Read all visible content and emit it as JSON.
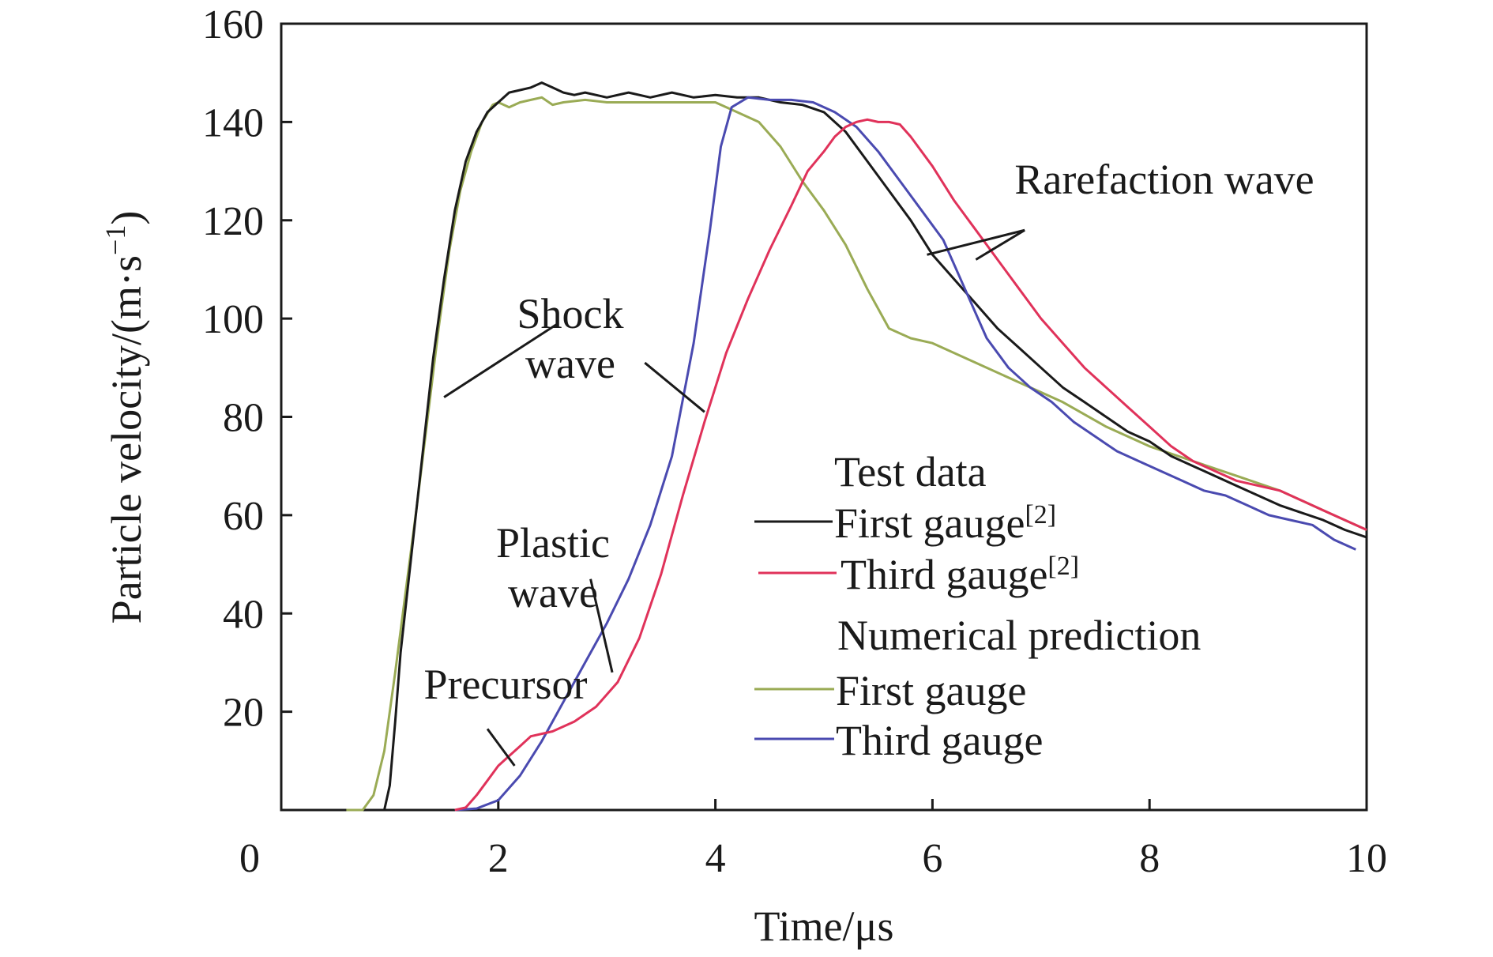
{
  "chart_data": {
    "type": "line",
    "title": "",
    "xlabel": "Time/μs",
    "ylabel": "Particle velocity/(m·s",
    "ylabel_sup": "−1",
    "ylabel_close": ")",
    "xlim": [
      0,
      10
    ],
    "ylim": [
      0,
      160
    ],
    "x_ticks": [
      0,
      2,
      4,
      6,
      8,
      10
    ],
    "y_ticks": [
      20,
      40,
      60,
      80,
      100,
      120,
      140,
      160
    ],
    "grid": false,
    "legend": {
      "placement": "lower-right",
      "groups": [
        {
          "title": "Test data",
          "entries": [
            {
              "label": "First gauge",
              "sup": "[2]",
              "series": "test_first"
            },
            {
              "label": "Third gauge",
              "sup": "[2]",
              "series": "test_third"
            }
          ]
        },
        {
          "title": "Numerical prediction",
          "entries": [
            {
              "label": "First gauge",
              "sup": "",
              "series": "num_first"
            },
            {
              "label": "Third gauge",
              "sup": "",
              "series": "num_third"
            }
          ]
        }
      ]
    },
    "annotations": {
      "shock": [
        "Shock",
        "wave"
      ],
      "rarefaction": "Rarefaction wave",
      "plastic": [
        "Plastic",
        "wave"
      ],
      "precursor": "Precursor"
    },
    "series": [
      {
        "id": "test_first",
        "color": "#1a1a1a",
        "points": [
          [
            0.85,
            0
          ],
          [
            0.95,
            0
          ],
          [
            1.0,
            5
          ],
          [
            1.05,
            18
          ],
          [
            1.1,
            32
          ],
          [
            1.2,
            52
          ],
          [
            1.3,
            72
          ],
          [
            1.4,
            92
          ],
          [
            1.5,
            108
          ],
          [
            1.6,
            122
          ],
          [
            1.7,
            132
          ],
          [
            1.8,
            138
          ],
          [
            1.9,
            142
          ],
          [
            2.0,
            144
          ],
          [
            2.1,
            146
          ],
          [
            2.2,
            146.5
          ],
          [
            2.3,
            147
          ],
          [
            2.4,
            148
          ],
          [
            2.5,
            147
          ],
          [
            2.6,
            146
          ],
          [
            2.7,
            145.5
          ],
          [
            2.8,
            146
          ],
          [
            3.0,
            145
          ],
          [
            3.2,
            146
          ],
          [
            3.4,
            145
          ],
          [
            3.6,
            146
          ],
          [
            3.8,
            145
          ],
          [
            4.0,
            145.5
          ],
          [
            4.2,
            145
          ],
          [
            4.4,
            145
          ],
          [
            4.6,
            144
          ],
          [
            4.8,
            143.5
          ],
          [
            5.0,
            142
          ],
          [
            5.2,
            138
          ],
          [
            5.4,
            132
          ],
          [
            5.6,
            126
          ],
          [
            5.8,
            120
          ],
          [
            6.0,
            113
          ],
          [
            6.2,
            108
          ],
          [
            6.4,
            103
          ],
          [
            6.6,
            98
          ],
          [
            6.8,
            94
          ],
          [
            7.0,
            90
          ],
          [
            7.2,
            86
          ],
          [
            7.4,
            83
          ],
          [
            7.6,
            80
          ],
          [
            7.8,
            77
          ],
          [
            8.0,
            75
          ],
          [
            8.2,
            72
          ],
          [
            8.4,
            70
          ],
          [
            8.6,
            68
          ],
          [
            8.8,
            66
          ],
          [
            9.0,
            64
          ],
          [
            9.2,
            62
          ],
          [
            9.4,
            60.5
          ],
          [
            9.6,
            59
          ],
          [
            9.8,
            57
          ],
          [
            10.0,
            55.5
          ]
        ]
      },
      {
        "id": "test_third",
        "color": "#e0325a",
        "points": [
          [
            1.6,
            0
          ],
          [
            1.7,
            0.5
          ],
          [
            1.8,
            3
          ],
          [
            1.9,
            6
          ],
          [
            2.0,
            9
          ],
          [
            2.1,
            11
          ],
          [
            2.2,
            13
          ],
          [
            2.3,
            15
          ],
          [
            2.5,
            16
          ],
          [
            2.7,
            18
          ],
          [
            2.9,
            21
          ],
          [
            3.1,
            26
          ],
          [
            3.3,
            35
          ],
          [
            3.5,
            48
          ],
          [
            3.7,
            64
          ],
          [
            3.9,
            79
          ],
          [
            4.1,
            93
          ],
          [
            4.3,
            104
          ],
          [
            4.5,
            114
          ],
          [
            4.7,
            123
          ],
          [
            4.85,
            130
          ],
          [
            5.0,
            134
          ],
          [
            5.1,
            137
          ],
          [
            5.2,
            139
          ],
          [
            5.3,
            140
          ],
          [
            5.4,
            140.5
          ],
          [
            5.5,
            140
          ],
          [
            5.6,
            140
          ],
          [
            5.7,
            139.5
          ],
          [
            5.8,
            137
          ],
          [
            6.0,
            131
          ],
          [
            6.2,
            124
          ],
          [
            6.4,
            118
          ],
          [
            6.6,
            112
          ],
          [
            6.8,
            106
          ],
          [
            7.0,
            100
          ],
          [
            7.2,
            95
          ],
          [
            7.4,
            90
          ],
          [
            7.6,
            86
          ],
          [
            7.8,
            82
          ],
          [
            8.0,
            78
          ],
          [
            8.2,
            74
          ],
          [
            8.4,
            71
          ],
          [
            8.6,
            69
          ],
          [
            8.8,
            67
          ],
          [
            9.0,
            66
          ],
          [
            9.2,
            65
          ],
          [
            9.4,
            63
          ],
          [
            9.6,
            61
          ],
          [
            9.8,
            59
          ],
          [
            10.0,
            57
          ]
        ]
      },
      {
        "id": "num_first",
        "color": "#9aab55",
        "points": [
          [
            0.6,
            0
          ],
          [
            0.75,
            0
          ],
          [
            0.85,
            3
          ],
          [
            0.95,
            12
          ],
          [
            1.05,
            28
          ],
          [
            1.15,
            45
          ],
          [
            1.25,
            62
          ],
          [
            1.35,
            80
          ],
          [
            1.45,
            98
          ],
          [
            1.55,
            114
          ],
          [
            1.65,
            126
          ],
          [
            1.75,
            134
          ],
          [
            1.85,
            140
          ],
          [
            1.95,
            143.5
          ],
          [
            2.0,
            144
          ],
          [
            2.1,
            143
          ],
          [
            2.2,
            144
          ],
          [
            2.3,
            144.5
          ],
          [
            2.4,
            145
          ],
          [
            2.5,
            143.5
          ],
          [
            2.6,
            144
          ],
          [
            2.8,
            144.5
          ],
          [
            3.0,
            144
          ],
          [
            3.5,
            144
          ],
          [
            4.0,
            144
          ],
          [
            4.2,
            142
          ],
          [
            4.4,
            140
          ],
          [
            4.6,
            135
          ],
          [
            4.8,
            128
          ],
          [
            5.0,
            122
          ],
          [
            5.2,
            115
          ],
          [
            5.4,
            106
          ],
          [
            5.6,
            98
          ],
          [
            5.8,
            96
          ],
          [
            6.0,
            95
          ],
          [
            6.4,
            91
          ],
          [
            6.8,
            87
          ],
          [
            7.2,
            83
          ],
          [
            7.6,
            78
          ],
          [
            8.0,
            74
          ],
          [
            8.4,
            71
          ],
          [
            8.8,
            68
          ],
          [
            9.2,
            65
          ],
          [
            9.6,
            61
          ],
          [
            10.0,
            57
          ]
        ]
      },
      {
        "id": "num_third",
        "color": "#4a4ab0",
        "points": [
          [
            1.6,
            0
          ],
          [
            1.8,
            0.3
          ],
          [
            2.0,
            2
          ],
          [
            2.2,
            7
          ],
          [
            2.4,
            14
          ],
          [
            2.6,
            22
          ],
          [
            2.8,
            30
          ],
          [
            3.0,
            38
          ],
          [
            3.2,
            47
          ],
          [
            3.4,
            58
          ],
          [
            3.6,
            72
          ],
          [
            3.8,
            95
          ],
          [
            3.95,
            118
          ],
          [
            4.05,
            135
          ],
          [
            4.15,
            143
          ],
          [
            4.3,
            145
          ],
          [
            4.5,
            144.5
          ],
          [
            4.7,
            144.5
          ],
          [
            4.9,
            144
          ],
          [
            5.1,
            142
          ],
          [
            5.3,
            139
          ],
          [
            5.5,
            134
          ],
          [
            5.7,
            128
          ],
          [
            5.9,
            122
          ],
          [
            6.1,
            116
          ],
          [
            6.3,
            106
          ],
          [
            6.5,
            96
          ],
          [
            6.7,
            90
          ],
          [
            6.9,
            86
          ],
          [
            7.1,
            83
          ],
          [
            7.3,
            79
          ],
          [
            7.5,
            76
          ],
          [
            7.7,
            73
          ],
          [
            7.9,
            71
          ],
          [
            8.1,
            69
          ],
          [
            8.3,
            67
          ],
          [
            8.5,
            65
          ],
          [
            8.7,
            64
          ],
          [
            8.9,
            62
          ],
          [
            9.1,
            60
          ],
          [
            9.3,
            59
          ],
          [
            9.5,
            58
          ],
          [
            9.7,
            55
          ],
          [
            9.9,
            53
          ]
        ]
      }
    ]
  }
}
